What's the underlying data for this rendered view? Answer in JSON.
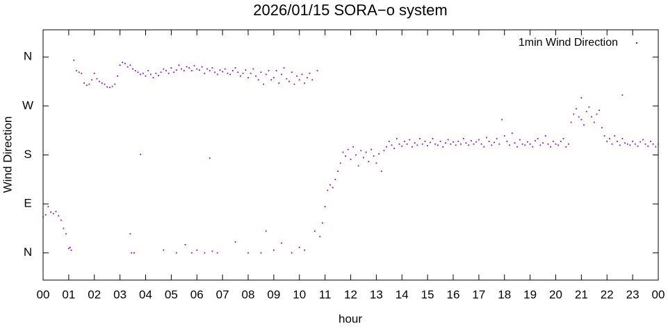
{
  "chart_data": {
    "type": "scatter",
    "title": "2026/01/15 SORA−o system",
    "x_label": "hour",
    "y_label": "Wind Direction",
    "xlim": [
      0,
      24
    ],
    "ylim": [
      -50,
      410
    ],
    "xticks": [
      {
        "value": 0,
        "label": "00"
      },
      {
        "value": 1,
        "label": "01"
      },
      {
        "value": 2,
        "label": "02"
      },
      {
        "value": 3,
        "label": "03"
      },
      {
        "value": 4,
        "label": "04"
      },
      {
        "value": 5,
        "label": "05"
      },
      {
        "value": 6,
        "label": "06"
      },
      {
        "value": 7,
        "label": "07"
      },
      {
        "value": 8,
        "label": "08"
      },
      {
        "value": 9,
        "label": "09"
      },
      {
        "value": 10,
        "label": "10"
      },
      {
        "value": 11,
        "label": "11"
      },
      {
        "value": 12,
        "label": "12"
      },
      {
        "value": 13,
        "label": "13"
      },
      {
        "value": 14,
        "label": "14"
      },
      {
        "value": 15,
        "label": "15"
      },
      {
        "value": 16,
        "label": "16"
      },
      {
        "value": 17,
        "label": "17"
      },
      {
        "value": 18,
        "label": "18"
      },
      {
        "value": 19,
        "label": "19"
      },
      {
        "value": 20,
        "label": "20"
      },
      {
        "value": 21,
        "label": "21"
      },
      {
        "value": 22,
        "label": "22"
      },
      {
        "value": 23,
        "label": "23"
      },
      {
        "value": 24,
        "label": "00"
      }
    ],
    "yticks": [
      {
        "value": 0,
        "label": "N"
      },
      {
        "value": 90,
        "label": "E"
      },
      {
        "value": 180,
        "label": "S"
      },
      {
        "value": 270,
        "label": "W"
      },
      {
        "value": 360,
        "label": "N"
      }
    ],
    "legend": "top-right",
    "series": [
      {
        "name": "1min Wind Direction",
        "color": "#9400d3",
        "x": [
          0,
          0.1,
          0.2,
          0.3,
          0.4,
          0.5,
          0.6,
          0.7,
          0.8,
          0.9,
          1,
          1.1,
          1.2,
          1.3,
          1.4,
          1.5,
          1.6,
          1.7,
          1.8,
          1.9,
          2,
          2.1,
          2.2,
          2.3,
          2.4,
          2.5,
          2.6,
          2.7,
          2.8,
          2.9,
          3,
          3.1,
          3.2,
          3.3,
          3.4,
          3.5,
          3.6,
          3.7,
          3.8,
          3.9,
          4,
          4.1,
          4.2,
          4.3,
          4.4,
          4.5,
          4.6,
          4.7,
          4.8,
          4.9,
          5,
          5.1,
          5.2,
          5.3,
          5.4,
          5.5,
          5.6,
          5.7,
          5.8,
          5.9,
          6,
          6.1,
          6.2,
          6.3,
          6.4,
          6.5,
          6.6,
          6.7,
          6.8,
          6.9,
          7,
          7.1,
          7.2,
          7.3,
          7.4,
          7.5,
          7.6,
          7.7,
          7.8,
          7.9,
          8,
          8.1,
          8.2,
          8.3,
          8.4,
          8.5,
          8.6,
          8.7,
          8.8,
          8.9,
          9,
          9.1,
          9.2,
          9.3,
          9.4,
          9.5,
          9.6,
          9.7,
          9.8,
          9.9,
          10,
          10.1,
          10.2,
          10.3,
          10.4,
          10.5,
          10.6,
          10.7,
          10.8,
          10.9,
          11,
          11.1,
          11.2,
          11.3,
          11.4,
          11.5,
          11.6,
          11.7,
          11.8,
          11.9,
          12,
          12.1,
          12.2,
          12.3,
          12.4,
          12.5,
          12.6,
          12.7,
          12.8,
          12.9,
          13,
          13.1,
          13.2,
          13.3,
          13.4,
          13.5,
          13.6,
          13.7,
          13.8,
          13.9,
          14,
          14.1,
          14.2,
          14.3,
          14.4,
          14.5,
          14.6,
          14.7,
          14.8,
          14.9,
          15,
          15.1,
          15.2,
          15.3,
          15.4,
          15.5,
          15.6,
          15.7,
          15.8,
          15.9,
          16,
          16.1,
          16.2,
          16.3,
          16.4,
          16.5,
          16.6,
          16.7,
          16.8,
          16.9,
          17,
          17.1,
          17.2,
          17.3,
          17.4,
          17.5,
          17.6,
          17.7,
          17.8,
          17.9,
          18,
          18.1,
          18.2,
          18.3,
          18.4,
          18.5,
          18.6,
          18.7,
          18.8,
          18.9,
          19,
          19.1,
          19.2,
          19.3,
          19.4,
          19.5,
          19.6,
          19.7,
          19.8,
          19.9,
          20,
          20.1,
          20.2,
          20.3,
          20.4,
          20.5,
          20.6,
          20.7,
          20.8,
          20.9,
          21,
          21.1,
          21.2,
          21.3,
          21.4,
          21.5,
          21.6,
          21.7,
          21.8,
          21.9,
          22,
          22.1,
          22.2,
          22.3,
          22.4,
          22.5,
          22.6,
          22.7,
          22.8,
          22.9,
          23,
          23.1,
          23.2,
          23.3,
          23.4,
          23.5,
          23.6,
          23.7,
          23.8,
          23.9,
          24,
          1.05,
          3.45,
          3.55,
          3.4,
          3.8,
          4.7,
          5.2,
          5.55,
          5.8,
          6,
          6.3,
          6.5,
          6.6,
          6.8,
          7.5,
          8,
          8.5,
          8.7,
          9,
          9.3,
          9.7,
          10,
          10.2,
          22.6,
          21
        ],
        "values": [
          66,
          70,
          85,
          75,
          72,
          76,
          68,
          60,
          45,
          35,
          8,
          5,
          354,
          335,
          332,
          330,
          312,
          308,
          310,
          318,
          330,
          320,
          315,
          312,
          310,
          305,
          304,
          306,
          310,
          325,
          345,
          350,
          348,
          342,
          345,
          338,
          335,
          332,
          328,
          330,
          325,
          335,
          328,
          322,
          330,
          326,
          332,
          338,
          335,
          330,
          340,
          332,
          336,
          345,
          338,
          335,
          342,
          340,
          335,
          344,
          338,
          336,
          342,
          330,
          338,
          335,
          340,
          332,
          328,
          336,
          333,
          338,
          330,
          328,
          335,
          340,
          332,
          325,
          330,
          336,
          322,
          330,
          338,
          325,
          318,
          332,
          310,
          328,
          335,
          318,
          322,
          335,
          312,
          328,
          340,
          320,
          315,
          332,
          310,
          325,
          318,
          328,
          312,
          322,
          330,
          318,
          40,
          335,
          30,
          55,
          85,
          115,
          125,
          120,
          135,
          150,
          165,
          185,
          178,
          190,
          172,
          195,
          180,
          160,
          188,
          175,
          185,
          168,
          190,
          178,
          165,
          182,
          150,
          188,
          195,
          205,
          198,
          192,
          210,
          200,
          196,
          205,
          200,
          208,
          195,
          202,
          198,
          210,
          200,
          205,
          197,
          203,
          210,
          200,
          198,
          205,
          195,
          202,
          208,
          200,
          204,
          198,
          205,
          200,
          210,
          202,
          198,
          206,
          200,
          204,
          208,
          200,
          195,
          212,
          205,
          198,
          203,
          210,
          200,
          245,
          215,
          205,
          198,
          220,
          202,
          195,
          208,
          200,
          198,
          204,
          200,
          195,
          206,
          210,
          198,
          202,
          215,
          200,
          195,
          205,
          200,
          198,
          205,
          210,
          195,
          200,
          240,
          255,
          265,
          250,
          245,
          235,
          260,
          268,
          250,
          240,
          255,
          262,
          230,
          215,
          205,
          210,
          200,
          215,
          205,
          198,
          210,
          202,
          200,
          198,
          205,
          200,
          196,
          204,
          208,
          200,
          196,
          205,
          200,
          195,
          200,
          10,
          0,
          0,
          35,
          181,
          5,
          0,
          15,
          0,
          5,
          0,
          174,
          3,
          0,
          20,
          0,
          0,
          40,
          5,
          18,
          0,
          10,
          5,
          290,
          285
        ]
      }
    ]
  }
}
